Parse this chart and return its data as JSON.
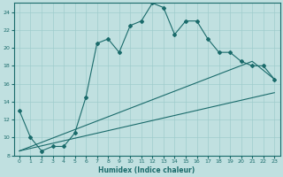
{
  "xlabel": "Humidex (Indice chaleur)",
  "bg_color": "#c0e0e0",
  "line_color": "#1a6b6b",
  "grid_color": "#a0cccc",
  "xlim": [
    -0.5,
    23.5
  ],
  "ylim": [
    8,
    25
  ],
  "yticks": [
    8,
    10,
    12,
    14,
    16,
    18,
    20,
    22,
    24
  ],
  "xticks": [
    0,
    1,
    2,
    3,
    4,
    5,
    6,
    7,
    8,
    9,
    10,
    11,
    12,
    13,
    14,
    15,
    16,
    17,
    18,
    19,
    20,
    21,
    22,
    23
  ],
  "series1_x": [
    0,
    1,
    2,
    3,
    4,
    5,
    6,
    7,
    8,
    9,
    10,
    11,
    12,
    13,
    14,
    15,
    16,
    17,
    18,
    19,
    20,
    21,
    22,
    23
  ],
  "series1_y": [
    13.0,
    10.0,
    8.5,
    9.0,
    9.0,
    10.5,
    14.5,
    20.5,
    21.0,
    19.5,
    22.5,
    23.0,
    25.0,
    24.5,
    21.5,
    23.0,
    23.0,
    21.0,
    19.5,
    19.5,
    18.5,
    18.0,
    18.0,
    16.5
  ],
  "series2_x": [
    0,
    23
  ],
  "series2_y": [
    8.5,
    15.0
  ],
  "series3_x": [
    0,
    21,
    23
  ],
  "series3_y": [
    8.5,
    18.5,
    16.5
  ]
}
